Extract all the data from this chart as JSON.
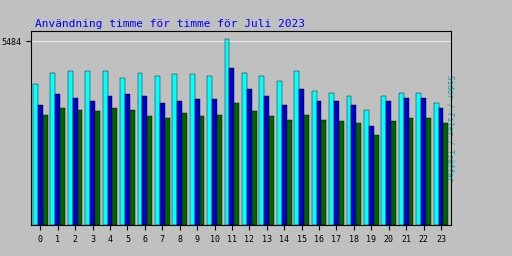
{
  "title": "Användning timme för timme för Juli 2023",
  "ylabel": "Sidor / Filer / Träffar",
  "xlabel_ticks": [
    0,
    1,
    2,
    3,
    4,
    5,
    6,
    7,
    8,
    9,
    10,
    11,
    12,
    13,
    14,
    15,
    16,
    17,
    18,
    19,
    20,
    21,
    22,
    23
  ],
  "ytick_label": "5484",
  "background_color": "#c0c0c0",
  "plot_bg_color": "#c0c0c0",
  "bar_width": 0.28,
  "colors": {
    "green": "#006400",
    "blue": "#0000cc",
    "cyan": "#00ffff"
  },
  "cyan_vals": [
    4200,
    4550,
    4600,
    4600,
    4600,
    4400,
    4550,
    4450,
    4500,
    4500,
    4450,
    5550,
    4550,
    4450,
    4300,
    4600,
    4000,
    3950,
    3850,
    3450,
    3850,
    3950,
    3950,
    3650
  ],
  "blue_vals": [
    3600,
    3900,
    3800,
    3700,
    3850,
    3900,
    3850,
    3650,
    3700,
    3750,
    3750,
    4700,
    4050,
    3850,
    3600,
    4050,
    3700,
    3700,
    3600,
    2950,
    3700,
    3800,
    3800,
    3500
  ],
  "green_vals": [
    3300,
    3500,
    3450,
    3400,
    3500,
    3450,
    3250,
    3200,
    3350,
    3250,
    3300,
    3650,
    3400,
    3250,
    3150,
    3300,
    3150,
    3100,
    3050,
    2700,
    3100,
    3200,
    3200,
    3050
  ],
  "ylim": [
    0,
    5800
  ],
  "ytick_val": 5484
}
